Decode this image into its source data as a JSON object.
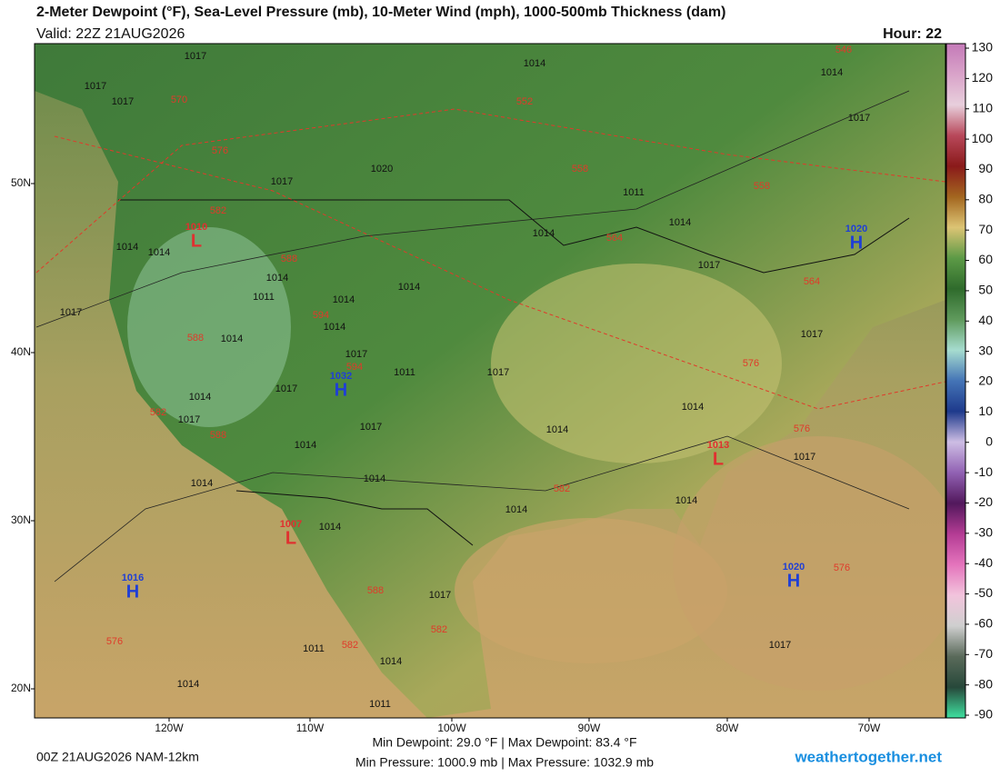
{
  "header": {
    "title": "2-Meter Dewpoint (°F), Sea-Level Pressure (mb), 10-Meter Wind (mph), 1000-500mb Thickness (dam)",
    "valid": "Valid: 22Z 21AUG2026",
    "hour": "Hour: 22"
  },
  "colorbar": {
    "ticks": [
      130,
      120,
      110,
      100,
      90,
      80,
      70,
      60,
      50,
      40,
      30,
      20,
      10,
      0,
      -10,
      -20,
      -30,
      -40,
      -50,
      -60,
      -70,
      -80,
      -90
    ],
    "colors": [
      "#c47ab8",
      "#d9a3c9",
      "#e8cfdc",
      "#b8485a",
      "#8a1a1a",
      "#a3661f",
      "#dcc474",
      "#5c9a46",
      "#2f6b2c",
      "#5f9a5c",
      "#a6dccf",
      "#4474b6",
      "#1e3a8c",
      "#cdbde4",
      "#9161b3",
      "#52185c",
      "#b43c94",
      "#e474bc",
      "#f2c4dc",
      "#cfcfcf",
      "#5a6a5a",
      "#27483a",
      "#3fe0a0"
    ]
  },
  "axes": {
    "lat_labels": [
      "50N",
      "40N",
      "30N",
      "20N"
    ],
    "lon_labels": [
      "120W",
      "110W",
      "100W",
      "90W",
      "80W",
      "70W"
    ]
  },
  "isobar_labels": [
    "1017",
    "1017",
    "1017",
    "1014",
    "1014",
    "1017",
    "1020",
    "1017",
    "1011",
    "1014",
    "1014",
    "1014",
    "1014",
    "1014",
    "1011",
    "1014",
    "1014",
    "1017",
    "1014",
    "1014",
    "1017",
    "1017",
    "1017",
    "1011",
    "1017",
    "1017",
    "1014",
    "1017",
    "1014",
    "1014",
    "1017",
    "1014",
    "1014",
    "1017",
    "1014",
    "1014",
    "1014",
    "1014",
    "1017",
    "1011",
    "1017",
    "1014",
    "1014",
    "1011"
  ],
  "thickness_labels": [
    "570",
    "576",
    "552",
    "558",
    "558",
    "582",
    "588",
    "564",
    "564",
    "594",
    "588",
    "594",
    "576",
    "582",
    "588",
    "576",
    "582",
    "588",
    "582",
    "582",
    "576",
    "576",
    "546"
  ],
  "pressure_centers": [
    {
      "value": "1010",
      "type": "L"
    },
    {
      "value": "1032",
      "type": "H"
    },
    {
      "value": "1013",
      "type": "L"
    },
    {
      "value": "1007",
      "type": "L"
    },
    {
      "value": "1016",
      "type": "H"
    },
    {
      "value": "1020",
      "type": "H"
    },
    {
      "value": "1020",
      "type": "H"
    }
  ],
  "center_colors": {
    "H": "#1f3fd6",
    "L": "#e03030"
  },
  "footer": {
    "run": "00Z 21AUG2026 NAM-12km",
    "dewpoint": "Min Dewpoint:  29.0 °F | Max Dewpoint:  83.4 °F",
    "pressure": "Min Pressure: 1000.9 mb | Max Pressure: 1032.9 mb",
    "site": "weathertogether.net"
  }
}
